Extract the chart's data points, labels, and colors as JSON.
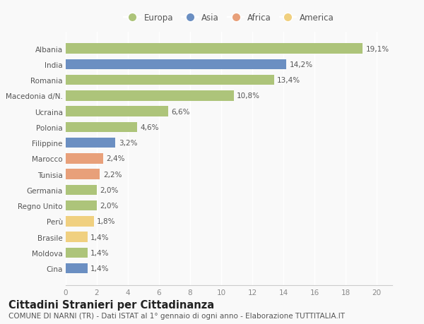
{
  "categories": [
    "Albania",
    "India",
    "Romania",
    "Macedonia d/N.",
    "Ucraina",
    "Polonia",
    "Filippine",
    "Marocco",
    "Tunisia",
    "Germania",
    "Regno Unito",
    "Perù",
    "Brasile",
    "Moldova",
    "Cina"
  ],
  "values": [
    19.1,
    14.2,
    13.4,
    10.8,
    6.6,
    4.6,
    3.2,
    2.4,
    2.2,
    2.0,
    2.0,
    1.8,
    1.4,
    1.4,
    1.4
  ],
  "labels": [
    "19,1%",
    "14,2%",
    "13,4%",
    "10,8%",
    "6,6%",
    "4,6%",
    "3,2%",
    "2,4%",
    "2,2%",
    "2,0%",
    "2,0%",
    "1,8%",
    "1,4%",
    "1,4%",
    "1,4%"
  ],
  "colors": [
    "#adc47a",
    "#6b8fc2",
    "#adc47a",
    "#adc47a",
    "#adc47a",
    "#adc47a",
    "#6b8fc2",
    "#e8a07a",
    "#e8a07a",
    "#adc47a",
    "#adc47a",
    "#f0d080",
    "#f0d080",
    "#adc47a",
    "#6b8fc2"
  ],
  "legend_labels": [
    "Europa",
    "Asia",
    "Africa",
    "America"
  ],
  "legend_colors": [
    "#adc47a",
    "#6b8fc2",
    "#e8a07a",
    "#f0d080"
  ],
  "title": "Cittadini Stranieri per Cittadinanza",
  "subtitle": "COMUNE DI NARNI (TR) - Dati ISTAT al 1° gennaio di ogni anno - Elaborazione TUTTITALIA.IT",
  "xlim": [
    0,
    21
  ],
  "xticks": [
    0,
    2,
    4,
    6,
    8,
    10,
    12,
    14,
    16,
    18,
    20
  ],
  "bg_color": "#f9f9f9",
  "plot_bg_color": "#f9f9f9",
  "grid_color": "#ffffff",
  "bar_height": 0.65,
  "title_fontsize": 10.5,
  "subtitle_fontsize": 7.5,
  "label_fontsize": 7.5,
  "tick_fontsize": 7.5,
  "legend_fontsize": 8.5
}
